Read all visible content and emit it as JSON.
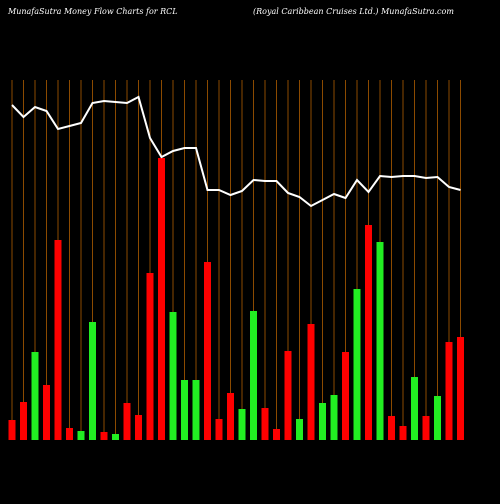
{
  "chart_data": {
    "type": "bar",
    "title": "MunafaSutra  Money Flow  Charts for RCL",
    "subtitle": "(Royal Caribbean  Cruises Ltd.) MunafaSutra.com",
    "background": "#000000",
    "gridline_color": "#8b4a00",
    "ylim": [
      0,
      360
    ],
    "series": [
      {
        "name": "Money flow",
        "type": "bar",
        "colors": [
          "#ff0000",
          "#ff0000",
          "#22ee22",
          "#ff0000",
          "#ff0000",
          "#ff0000",
          "#22ee22",
          "#22ee22",
          "#ff0000",
          "#22ee22",
          "#ff0000",
          "#ff0000",
          "#ff0000",
          "#ff0000",
          "#22ee22",
          "#22ee22",
          "#22ee22",
          "#ff0000",
          "#ff0000",
          "#ff0000",
          "#22ee22",
          "#22ee22",
          "#ff0000",
          "#ff0000",
          "#ff0000",
          "#22ee22",
          "#ff0000",
          "#22ee22",
          "#22ee22",
          "#ff0000",
          "#22ee22",
          "#ff0000",
          "#22ee22",
          "#ff0000",
          "#ff0000",
          "#22ee22",
          "#ff0000",
          "#22ee22",
          "#ff0000",
          "#ff0000"
        ],
        "values": [
          20,
          38,
          88,
          55,
          200,
          12,
          9,
          118,
          8,
          6,
          37,
          25,
          167,
          282,
          128,
          60,
          60,
          178,
          21,
          47,
          31,
          129,
          32,
          11,
          89,
          21,
          116,
          37,
          45,
          88,
          151,
          215,
          198,
          24,
          14,
          63,
          24,
          44,
          98,
          103
        ]
      },
      {
        "name": "Price",
        "type": "line",
        "color": "#ffffff",
        "values": [
          335,
          323,
          333,
          329,
          311,
          314,
          317,
          337,
          339,
          338,
          337,
          343,
          302,
          283,
          289,
          292,
          292,
          250,
          250,
          245,
          249,
          260,
          259,
          259,
          247,
          243,
          234,
          240,
          246,
          242,
          260,
          248,
          264,
          263,
          264,
          264,
          262,
          263,
          253,
          250
        ]
      }
    ]
  }
}
